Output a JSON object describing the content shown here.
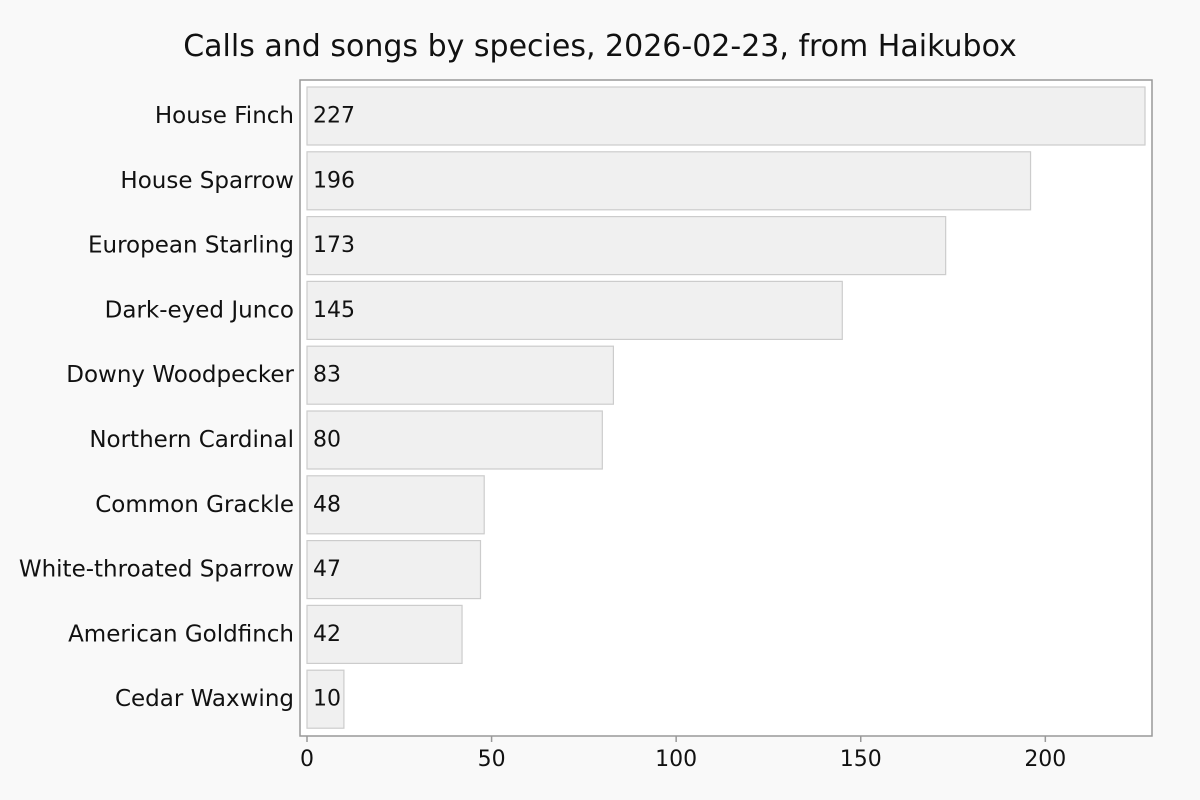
{
  "chart_data": {
    "type": "bar",
    "orientation": "horizontal",
    "title": "Calls and songs by species, 2026-02-23, from Haikubox",
    "xlabel": "",
    "ylabel": "",
    "categories": [
      "House Finch",
      "House Sparrow",
      "European Starling",
      "Dark-eyed Junco",
      "Downy Woodpecker",
      "Northern Cardinal",
      "Common Grackle",
      "White-throated Sparrow",
      "American Goldfinch",
      "Cedar Waxwing"
    ],
    "values": [
      227,
      196,
      173,
      145,
      83,
      80,
      48,
      47,
      42,
      10
    ],
    "value_labels": [
      "227",
      "196",
      "173",
      "145",
      "83",
      "80",
      "48",
      "47",
      "42",
      "10"
    ],
    "xlim": [
      0,
      229
    ],
    "xticks": [
      0,
      50,
      100,
      150,
      200
    ],
    "xtick_labels": [
      "0",
      "50",
      "100",
      "150",
      "200"
    ],
    "grid": false,
    "legend": "none",
    "colors": {
      "page_background": "#f9f9f9",
      "plot_background": "#ffffff",
      "bar_fill": "#f0f0f0",
      "bar_stroke": "#cccccc",
      "frame": "#999999",
      "text": "#111111"
    }
  }
}
